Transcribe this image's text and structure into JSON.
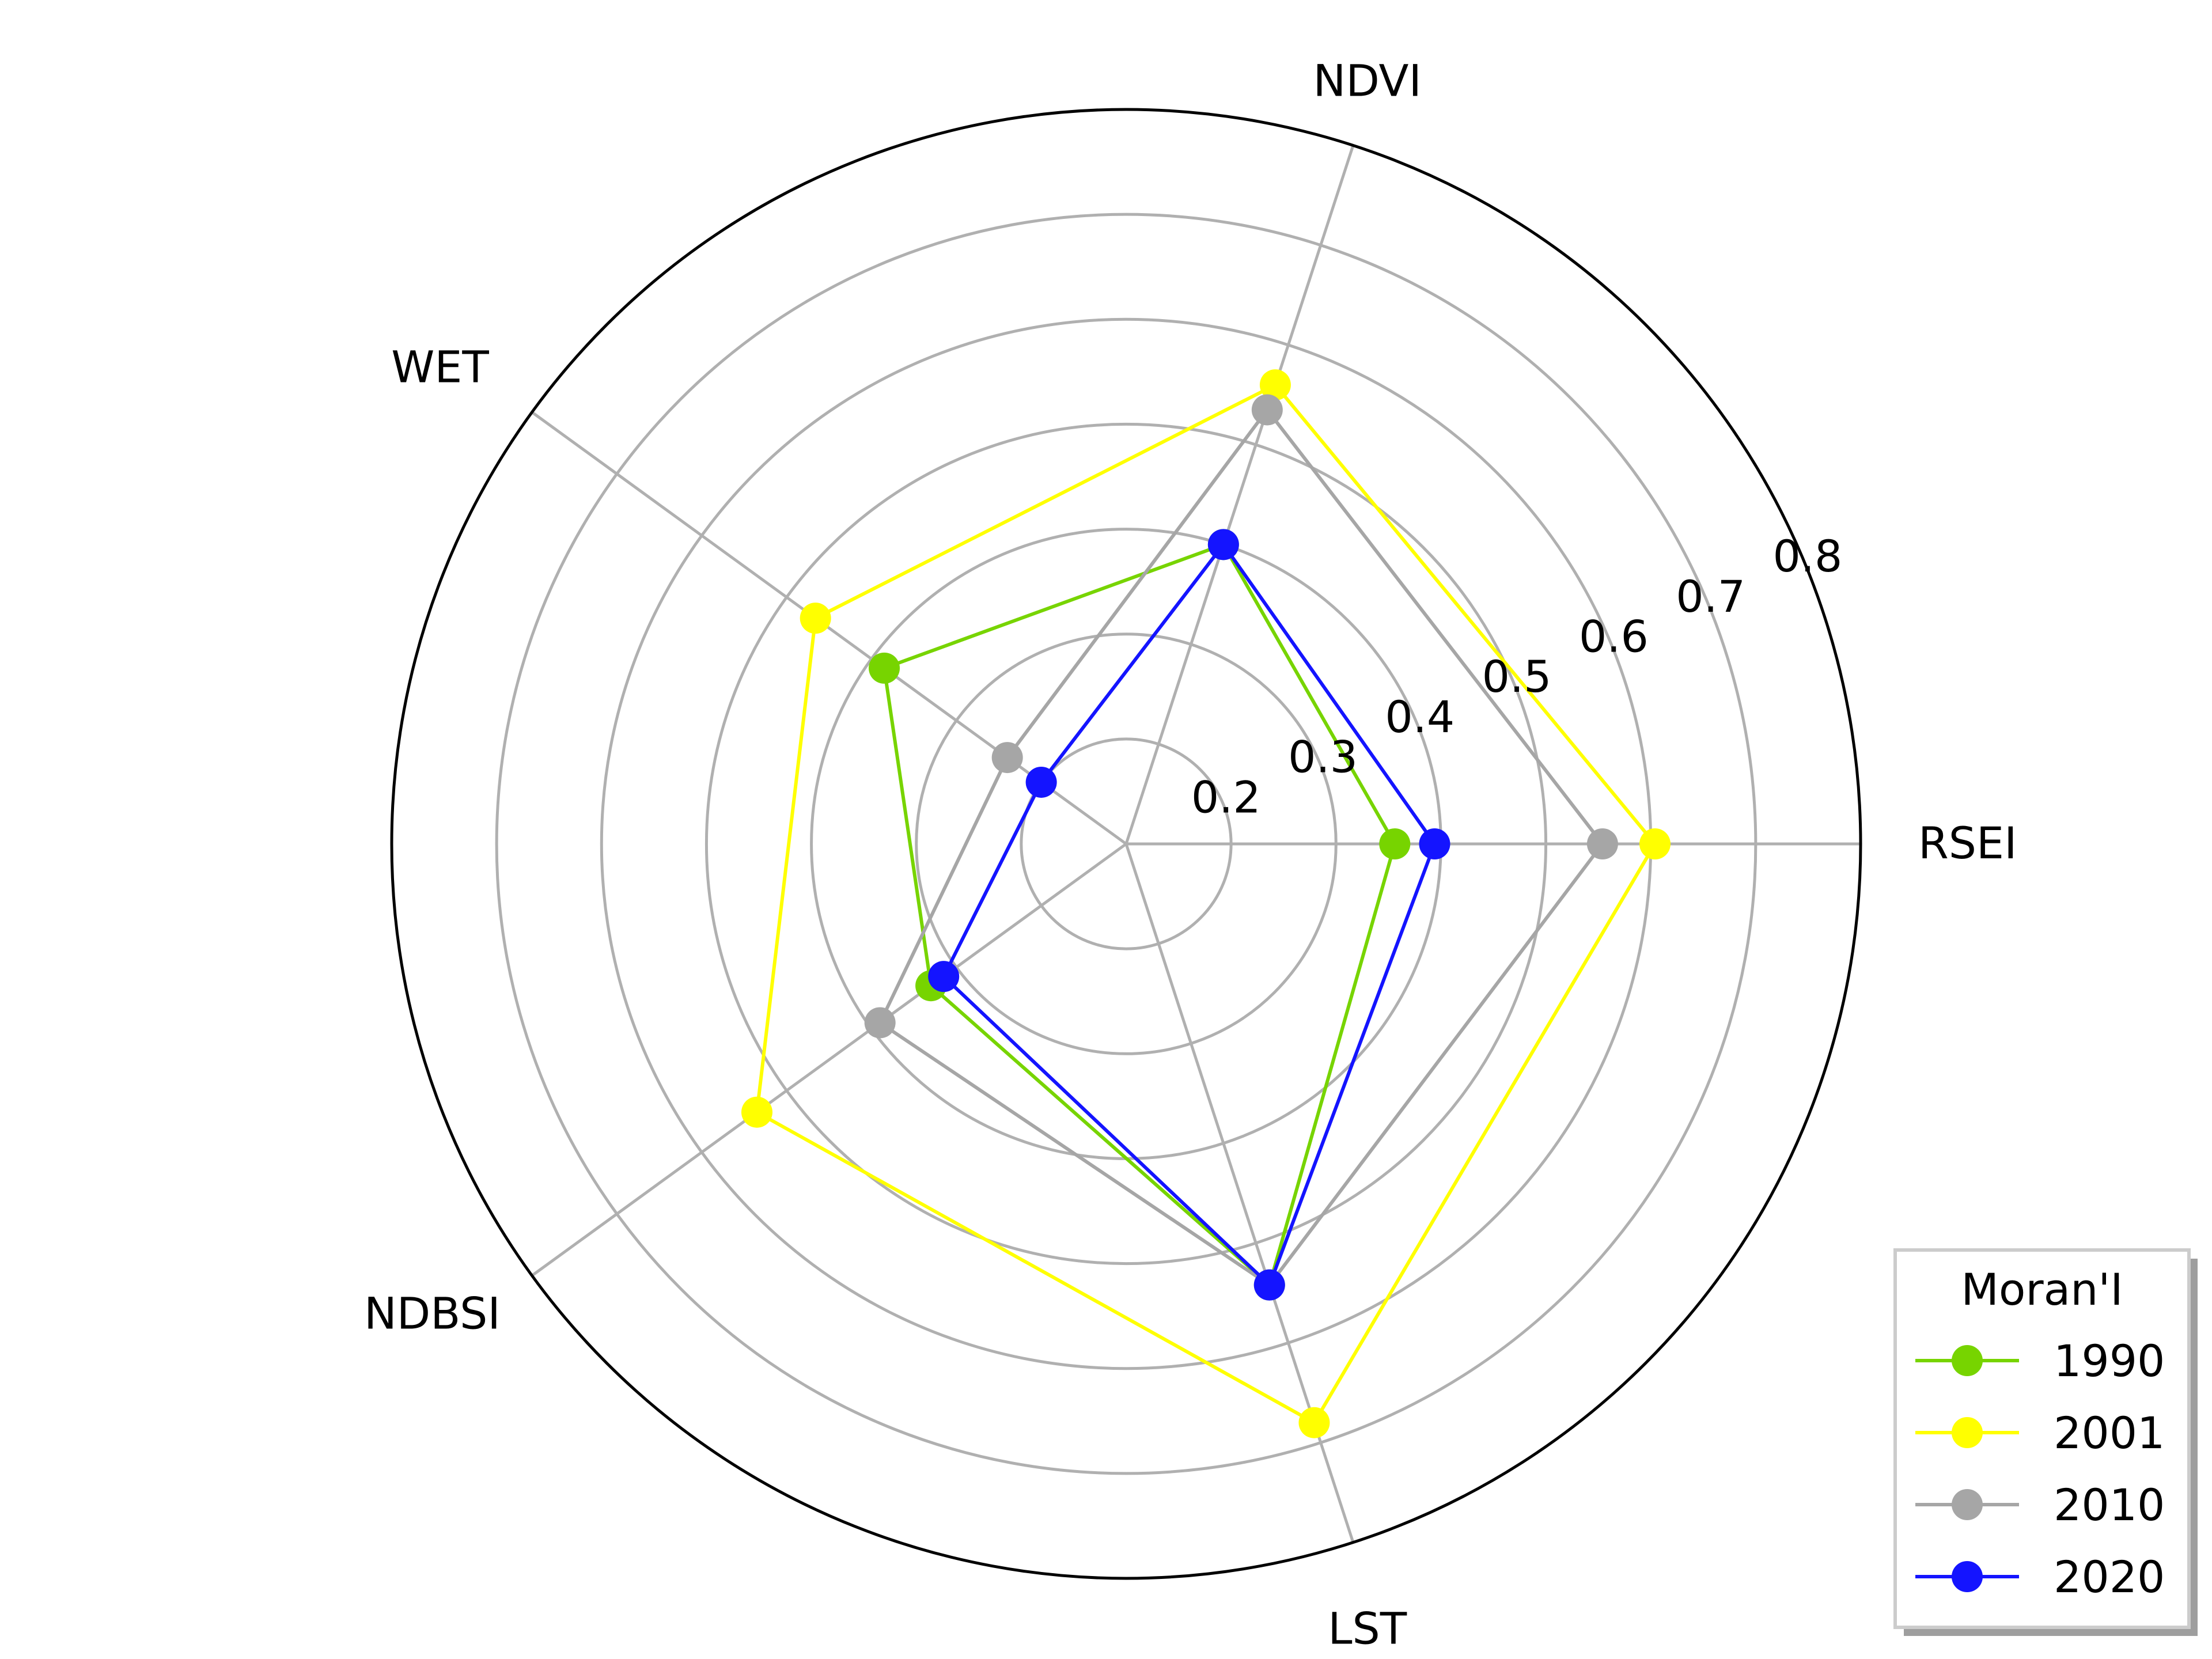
{
  "chart_data": {
    "type": "radar",
    "axes": [
      "RSEI",
      "NDVI",
      "WET",
      "NDBSI",
      "LST"
    ],
    "r_ticks": [
      0.2,
      0.3,
      0.4,
      0.5,
      0.6,
      0.7,
      0.8
    ],
    "r_range": [
      0.1,
      0.8
    ],
    "grid": true,
    "series": [
      {
        "name": "1990",
        "color": "#77d400",
        "values": [
          0.356,
          0.4,
          0.385,
          0.33,
          0.542
        ]
      },
      {
        "name": "2001",
        "color": "#ffff00",
        "values": [
          0.604,
          0.56,
          0.466,
          0.535,
          0.68
        ]
      },
      {
        "name": "2010",
        "color": "#a6a6a6",
        "values": [
          0.554,
          0.535,
          0.24,
          0.39,
          0.542
        ]
      },
      {
        "name": "2020",
        "color": "#1414ff",
        "values": [
          0.394,
          0.4,
          0.2,
          0.315,
          0.542
        ]
      }
    ],
    "legend": {
      "title": "Moran'I",
      "position": "bottom-right"
    }
  }
}
